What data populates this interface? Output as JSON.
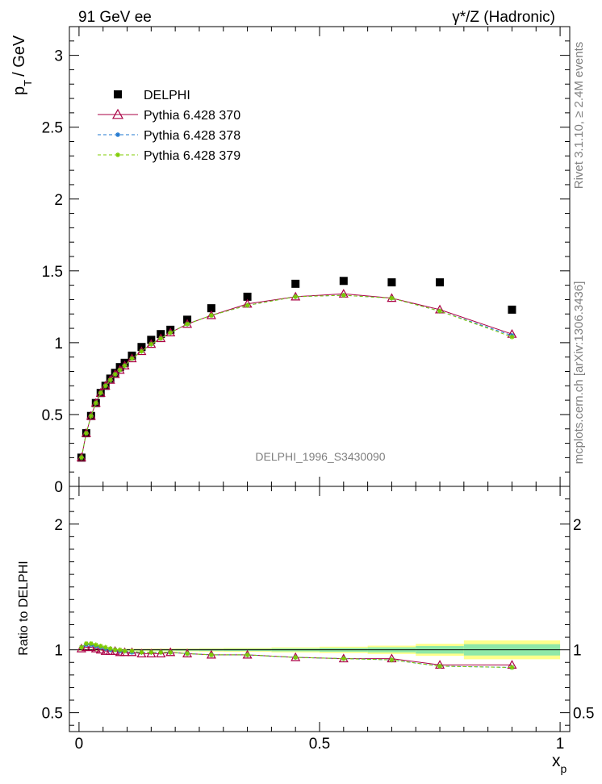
{
  "header": {
    "left": "91 GeV ee",
    "right": "γ*/Z (Hadronic)"
  },
  "side_texts": {
    "rivet": "Rivet 3.1.10, ≥ 2.4M events",
    "mcplots": "mcplots.cern.ch [arXiv:1306.3436]"
  },
  "watermark": "DELPHI_1996_S3430090",
  "colors": {
    "data": "#000000",
    "p370": "#aa0044",
    "p378": "#1f77d0",
    "p379": "#7fcc00",
    "band_inner": "#8fe8a8",
    "band_outer": "#ffff8c"
  },
  "chart_data": [
    {
      "type": "scatter",
      "panel": "main",
      "ylabel_main": "p",
      "ylabel_sub": "T",
      "ylabel_unit": "/ GeV",
      "xlim": [
        -0.02,
        1.02
      ],
      "ylim": [
        0,
        3.2
      ],
      "yticks": [
        0,
        0.5,
        1,
        1.5,
        2,
        2.5,
        3
      ],
      "ytick_labels": [
        "0",
        "0.5",
        "1",
        "1.5",
        "2",
        "2.5",
        "3"
      ],
      "legend_position": "top-left",
      "x": [
        0.005,
        0.015,
        0.025,
        0.035,
        0.045,
        0.055,
        0.065,
        0.075,
        0.085,
        0.095,
        0.11,
        0.13,
        0.15,
        0.17,
        0.19,
        0.225,
        0.275,
        0.35,
        0.45,
        0.55,
        0.65,
        0.75,
        0.9
      ],
      "series": [
        {
          "name": "DELPHI",
          "marker": "square",
          "values": [
            0.2,
            0.37,
            0.49,
            0.58,
            0.65,
            0.7,
            0.75,
            0.79,
            0.83,
            0.86,
            0.91,
            0.97,
            1.02,
            1.06,
            1.09,
            1.16,
            1.24,
            1.32,
            1.41,
            1.43,
            1.42,
            1.42,
            1.23
          ]
        },
        {
          "name": "Pythia 6.428 370",
          "marker": "triangle",
          "values": [
            0.2,
            0.37,
            0.49,
            0.58,
            0.65,
            0.7,
            0.74,
            0.78,
            0.81,
            0.84,
            0.89,
            0.94,
            0.99,
            1.03,
            1.07,
            1.13,
            1.19,
            1.27,
            1.32,
            1.34,
            1.31,
            1.23,
            1.06
          ]
        },
        {
          "name": "Pythia 6.428 378",
          "marker": "star",
          "values": [
            0.2,
            0.37,
            0.49,
            0.58,
            0.65,
            0.7,
            0.74,
            0.78,
            0.81,
            0.84,
            0.89,
            0.94,
            0.99,
            1.03,
            1.07,
            1.13,
            1.19,
            1.26,
            1.32,
            1.33,
            1.31,
            1.22,
            1.05
          ]
        },
        {
          "name": "Pythia 6.428 379",
          "marker": "star",
          "values": [
            0.2,
            0.37,
            0.49,
            0.58,
            0.65,
            0.7,
            0.74,
            0.78,
            0.81,
            0.84,
            0.89,
            0.94,
            0.99,
            1.03,
            1.07,
            1.13,
            1.19,
            1.26,
            1.32,
            1.33,
            1.31,
            1.22,
            1.04
          ]
        }
      ]
    },
    {
      "type": "line",
      "panel": "ratio",
      "ylabel": "Ratio to DELPHI",
      "xlabel_main": "x",
      "xlabel_sub": "p",
      "xlim": [
        -0.02,
        1.02
      ],
      "ylim": [
        0.35,
        2.3
      ],
      "yticks": [
        0.5,
        1,
        2
      ],
      "ytick_labels": [
        "0.5",
        "1",
        "2"
      ],
      "xticks": [
        0,
        0.5,
        1
      ],
      "xtick_labels": [
        "0",
        "0.5",
        "1"
      ],
      "x": [
        0.005,
        0.015,
        0.025,
        0.035,
        0.045,
        0.055,
        0.065,
        0.075,
        0.085,
        0.095,
        0.11,
        0.13,
        0.15,
        0.17,
        0.19,
        0.225,
        0.275,
        0.35,
        0.45,
        0.55,
        0.65,
        0.75,
        0.9
      ],
      "band_edges": [
        0,
        0.01,
        0.02,
        0.03,
        0.04,
        0.05,
        0.06,
        0.07,
        0.08,
        0.09,
        0.1,
        0.12,
        0.14,
        0.16,
        0.18,
        0.2,
        0.25,
        0.3,
        0.4,
        0.5,
        0.6,
        0.7,
        0.8,
        1.0
      ],
      "band_inner": [
        0.004,
        0.004,
        0.004,
        0.004,
        0.004,
        0.004,
        0.004,
        0.004,
        0.004,
        0.004,
        0.005,
        0.005,
        0.005,
        0.006,
        0.006,
        0.007,
        0.008,
        0.009,
        0.012,
        0.015,
        0.02,
        0.03,
        0.045
      ],
      "band_outer": [
        0.008,
        0.008,
        0.008,
        0.008,
        0.008,
        0.008,
        0.008,
        0.008,
        0.008,
        0.008,
        0.009,
        0.009,
        0.01,
        0.011,
        0.011,
        0.012,
        0.014,
        0.016,
        0.02,
        0.025,
        0.033,
        0.048,
        0.075
      ],
      "series": [
        {
          "name": "Pythia 6.428 370",
          "marker": "triangle",
          "values": [
            1.01,
            1.02,
            1.02,
            1.01,
            1.0,
            0.99,
            0.99,
            0.99,
            0.98,
            0.98,
            0.98,
            0.97,
            0.97,
            0.97,
            0.98,
            0.97,
            0.96,
            0.96,
            0.94,
            0.93,
            0.93,
            0.88,
            0.88
          ]
        },
        {
          "name": "Pythia 6.428 378",
          "marker": "star",
          "values": [
            1.02,
            1.04,
            1.04,
            1.03,
            1.02,
            1.01,
            1.0,
            1.0,
            0.99,
            0.99,
            0.98,
            0.98,
            0.98,
            0.98,
            0.98,
            0.97,
            0.96,
            0.96,
            0.94,
            0.93,
            0.92,
            0.87,
            0.86
          ]
        },
        {
          "name": "Pythia 6.428 379",
          "marker": "star",
          "values": [
            1.02,
            1.05,
            1.05,
            1.04,
            1.03,
            1.02,
            1.01,
            1.0,
            1.0,
            0.99,
            0.99,
            0.98,
            0.98,
            0.98,
            0.98,
            0.97,
            0.96,
            0.96,
            0.94,
            0.93,
            0.92,
            0.87,
            0.86
          ]
        }
      ]
    }
  ]
}
